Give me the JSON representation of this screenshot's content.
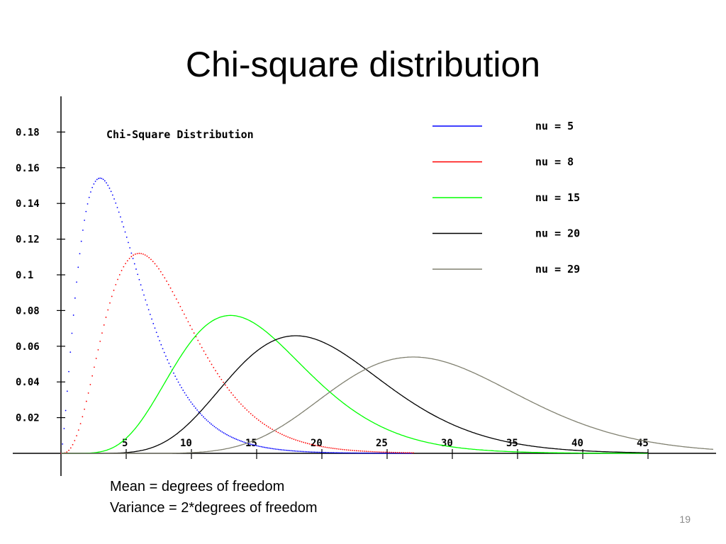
{
  "slide": {
    "title": "Chi-square distribution",
    "notes": [
      "Mean = degrees of freedom",
      "Variance = 2*degrees of freedom"
    ],
    "page_number": "19"
  },
  "chart_data": {
    "type": "line",
    "title": "Chi-Square Distribution",
    "xlabel": "",
    "ylabel": "",
    "x_ticks": [
      5,
      10,
      15,
      20,
      25,
      30,
      35,
      40,
      45
    ],
    "x_tick_labels": [
      "5",
      "10",
      "15",
      "20",
      "25",
      "30",
      "35",
      "40",
      "45"
    ],
    "y_ticks": [
      0.02,
      0.04,
      0.06,
      0.08,
      0.1,
      0.12,
      0.14,
      0.16,
      0.18
    ],
    "y_tick_labels": [
      "0.02",
      "0.04",
      "0.06",
      "0.08",
      "0.1",
      "0.12",
      "0.14",
      "0.16",
      "0.18"
    ],
    "xlim": [
      0,
      50
    ],
    "ylim": [
      0,
      0.2
    ],
    "grid": false,
    "legend_position": "top-right",
    "series": [
      {
        "name": "nu = 5",
        "df": 5,
        "color": "#0000ff",
        "style": "dotted",
        "x_max": 27,
        "x": [
          0,
          1,
          2,
          3,
          5,
          7,
          10,
          13,
          15,
          20,
          25
        ],
        "y": [
          0,
          0.0807,
          0.1383,
          0.1542,
          0.122,
          0.0744,
          0.0282,
          0.0095,
          0.0047,
          0.0007,
          0.0001
        ]
      },
      {
        "name": "nu = 8",
        "df": 8,
        "color": "#ff0000",
        "style": "dotted",
        "x_max": 27,
        "x": [
          0,
          2,
          4,
          6,
          8,
          10,
          13,
          15,
          20,
          25
        ],
        "y": [
          0,
          0.0153,
          0.0902,
          0.112,
          0.0977,
          0.0658,
          0.031,
          0.0167,
          0.0031,
          0.0004
        ]
      },
      {
        "name": "nu = 15",
        "df": 15,
        "color": "#00ff00",
        "style": "solid",
        "x_max": 45,
        "x": [
          0,
          5,
          8,
          10,
          13,
          15,
          20,
          25,
          30,
          35,
          40,
          45
        ],
        "y": [
          0,
          0.006,
          0.035,
          0.0585,
          0.0774,
          0.0748,
          0.0404,
          0.0134,
          0.0031,
          0.0006,
          0.0001,
          0.0
        ]
      },
      {
        "name": "nu = 20",
        "df": 20,
        "color": "#000000",
        "style": "solid",
        "x_max": 45,
        "x": [
          0,
          5,
          10,
          15,
          18,
          20,
          25,
          30,
          35,
          40,
          45
        ],
        "y": [
          0,
          0.0002,
          0.0183,
          0.0575,
          0.0662,
          0.0626,
          0.0396,
          0.0178,
          0.0065,
          0.002,
          0.0005
        ]
      },
      {
        "name": "nu = 29",
        "df": 29,
        "color": "#808070",
        "style": "solid",
        "x_max": 50,
        "x": [
          0,
          10,
          15,
          20,
          25,
          27,
          30,
          35,
          40,
          45,
          50
        ],
        "y": [
          0,
          0.0006,
          0.0078,
          0.0282,
          0.0505,
          0.0542,
          0.0518,
          0.037,
          0.0194,
          0.0078,
          0.0024
        ]
      }
    ]
  }
}
